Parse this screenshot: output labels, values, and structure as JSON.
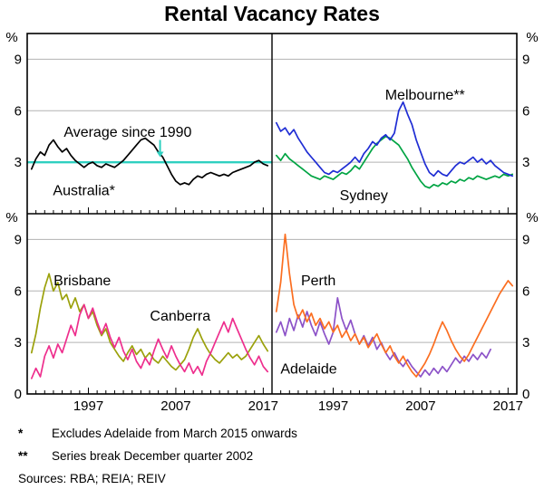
{
  "chart_data": {
    "type": "line",
    "title": "Rental Vacancy Rates",
    "unit": "%",
    "ylim": [
      0,
      10.5
    ],
    "yticks": [
      0,
      3,
      6,
      9
    ],
    "xlim": [
      1990,
      2018
    ],
    "xticks": [
      1997,
      2007,
      2017
    ],
    "x_start": 1990.5,
    "x_step": 0.5,
    "grid_color": "#b3b3b3",
    "axis_color": "#000000",
    "panels": [
      {
        "position": "top-left",
        "average_line": {
          "value": 3.0,
          "color": "#2fd0c0"
        },
        "series": [
          {
            "name": "Australia*",
            "color": "#000000",
            "values": [
              2.6,
              3.2,
              3.6,
              3.4,
              4.0,
              4.3,
              3.9,
              3.6,
              3.8,
              3.4,
              3.1,
              2.9,
              2.7,
              2.9,
              3.0,
              2.8,
              2.7,
              2.9,
              2.8,
              2.7,
              2.9,
              3.1,
              3.4,
              3.7,
              4.0,
              4.3,
              4.4,
              4.2,
              4.0,
              3.6,
              3.3,
              2.8,
              2.3,
              1.9,
              1.7,
              1.8,
              1.7,
              2.0,
              2.2,
              2.1,
              2.3,
              2.4,
              2.3,
              2.2,
              2.3,
              2.2,
              2.4,
              2.5,
              2.6,
              2.7,
              2.8,
              3.0,
              3.1,
              2.9,
              2.8
            ]
          }
        ],
        "annotations": [
          {
            "text": "Average since 1990",
            "x": 2001.5,
            "y": 4.75,
            "color": "#2fd0c0"
          },
          {
            "text": "Australia*",
            "x": 1996.5,
            "y": 1.35,
            "color": "#000000"
          }
        ],
        "arrow": {
          "x": 2005.2,
          "from_y": 4.3,
          "to_y": 3.3,
          "color": "#2fd0c0"
        }
      },
      {
        "position": "top-right",
        "series": [
          {
            "name": "Sydney",
            "color": "#00a443",
            "values": [
              3.4,
              3.1,
              3.5,
              3.2,
              3.0,
              2.8,
              2.6,
              2.4,
              2.2,
              2.1,
              2.0,
              2.2,
              2.1,
              2.0,
              2.2,
              2.4,
              2.3,
              2.5,
              2.8,
              2.6,
              3.0,
              3.4,
              3.8,
              4.1,
              4.3,
              4.5,
              4.4,
              4.2,
              4.0,
              3.6,
              3.2,
              2.7,
              2.3,
              1.9,
              1.6,
              1.5,
              1.7,
              1.6,
              1.8,
              1.7,
              1.9,
              1.8,
              2.0,
              1.9,
              2.1,
              2.0,
              2.2,
              2.1,
              2.0,
              2.1,
              2.2,
              2.1,
              2.3,
              2.2,
              2.3
            ]
          },
          {
            "name": "Melbourne**",
            "color": "#1f2dd4",
            "values": [
              5.3,
              4.8,
              5.0,
              4.6,
              4.9,
              4.4,
              4.0,
              3.6,
              3.3,
              3.0,
              2.7,
              2.4,
              2.3,
              2.5,
              2.4,
              2.6,
              2.8,
              3.0,
              3.3,
              3.0,
              3.5,
              3.8,
              4.2,
              4.0,
              4.4,
              4.6,
              4.3,
              4.7,
              6.0,
              6.5,
              5.8,
              5.2,
              4.3,
              3.6,
              2.9,
              2.4,
              2.2,
              2.5,
              2.3,
              2.2,
              2.5,
              2.8,
              3.0,
              2.9,
              3.1,
              3.3,
              3.0,
              3.2,
              2.9,
              3.1,
              2.8,
              2.6,
              2.4,
              2.3,
              2.2
            ]
          }
        ],
        "annotations": [
          {
            "text": "Melbourne**",
            "x": 2007.5,
            "y": 6.9,
            "color": "#1f2dd4"
          },
          {
            "text": "Sydney",
            "x": 2000.5,
            "y": 1.05,
            "color": "#00a443"
          }
        ]
      },
      {
        "position": "bottom-left",
        "series": [
          {
            "name": "Brisbane",
            "color": "#9ba10b",
            "values": [
              2.4,
              3.5,
              5.0,
              6.2,
              7.0,
              6.0,
              6.5,
              5.5,
              5.8,
              5.0,
              5.6,
              4.8,
              5.2,
              4.4,
              4.8,
              4.0,
              3.4,
              3.8,
              3.0,
              2.6,
              2.2,
              1.9,
              2.4,
              2.8,
              2.3,
              2.6,
              2.1,
              2.4,
              2.0,
              1.8,
              2.2,
              1.9,
              1.6,
              1.4,
              1.7,
              2.0,
              2.6,
              3.3,
              3.8,
              3.2,
              2.7,
              2.3,
              2.0,
              1.8,
              2.1,
              2.4,
              2.1,
              2.3,
              2.0,
              2.2,
              2.6,
              3.0,
              3.4,
              2.9,
              2.5
            ]
          },
          {
            "name": "Canberra",
            "color": "#ee2e8d",
            "values": [
              0.9,
              1.5,
              1.0,
              2.2,
              2.8,
              2.1,
              2.9,
              2.4,
              3.2,
              4.0,
              3.4,
              4.6,
              5.2,
              4.4,
              5.0,
              4.2,
              3.5,
              4.1,
              3.3,
              2.7,
              3.3,
              2.5,
              2.0,
              2.6,
              1.9,
              1.5,
              2.1,
              1.7,
              2.5,
              3.2,
              2.6,
              2.1,
              2.8,
              2.2,
              1.7,
              1.3,
              1.8,
              1.2,
              1.6,
              1.1,
              1.9,
              2.4,
              3.0,
              3.6,
              4.2,
              3.6,
              4.4,
              3.8,
              3.2,
              2.6,
              2.1,
              1.7,
              2.2,
              1.6,
              1.3
            ]
          }
        ],
        "annotations": [
          {
            "text": "Brisbane",
            "x": 1996.3,
            "y": 6.6,
            "color": "#9ba10b"
          },
          {
            "text": "Canberra",
            "x": 2007.5,
            "y": 4.55,
            "color": "#ee2e8d"
          }
        ]
      },
      {
        "position": "bottom-right",
        "series": [
          {
            "name": "Adelaide",
            "color": "#8c52c8",
            "values": [
              3.6,
              4.2,
              3.4,
              4.4,
              3.7,
              4.6,
              3.9,
              4.8,
              4.0,
              3.4,
              4.2,
              3.5,
              2.9,
              3.6,
              5.6,
              4.4,
              3.7,
              4.3,
              3.5,
              2.9,
              3.4,
              2.8,
              3.3,
              2.6,
              3.0,
              2.4,
              2.0,
              2.4,
              1.9,
              1.6,
              2.0,
              1.6,
              1.3,
              1.0,
              1.4,
              1.1,
              1.5,
              1.2,
              1.6,
              1.3,
              1.7,
              2.1,
              1.8,
              2.2,
              1.9,
              2.3,
              2.0,
              2.4,
              2.1,
              2.6
            ]
          },
          {
            "name": "Perth",
            "color": "#fb6e20",
            "values": [
              4.8,
              6.5,
              9.3,
              7.0,
              5.2,
              4.4,
              4.9,
              4.2,
              4.7,
              4.0,
              4.4,
              3.8,
              4.2,
              3.6,
              4.0,
              3.3,
              3.7,
              3.1,
              3.5,
              2.9,
              3.3,
              2.7,
              3.1,
              3.5,
              2.9,
              2.4,
              2.8,
              2.2,
              1.8,
              2.2,
              1.7,
              1.3,
              1.0,
              1.4,
              1.8,
              2.3,
              2.9,
              3.6,
              4.2,
              3.7,
              3.1,
              2.6,
              2.2,
              1.9,
              2.3,
              2.8,
              3.3,
              3.8,
              4.3,
              4.8,
              5.3,
              5.8,
              6.2,
              6.6,
              6.3
            ]
          }
        ],
        "annotations": [
          {
            "text": "Perth",
            "x": 1995.3,
            "y": 6.6,
            "color": "#fb6e20"
          },
          {
            "text": "Adelaide",
            "x": 1994.2,
            "y": 1.45,
            "color": "#8c52c8"
          }
        ]
      }
    ],
    "footnotes": [
      {
        "marker": "*",
        "text": "Excludes Adelaide from March 2015 onwards"
      },
      {
        "marker": "**",
        "text": "Series break December quarter 2002"
      }
    ],
    "sources": "Sources: RBA; REIA; REIV"
  }
}
